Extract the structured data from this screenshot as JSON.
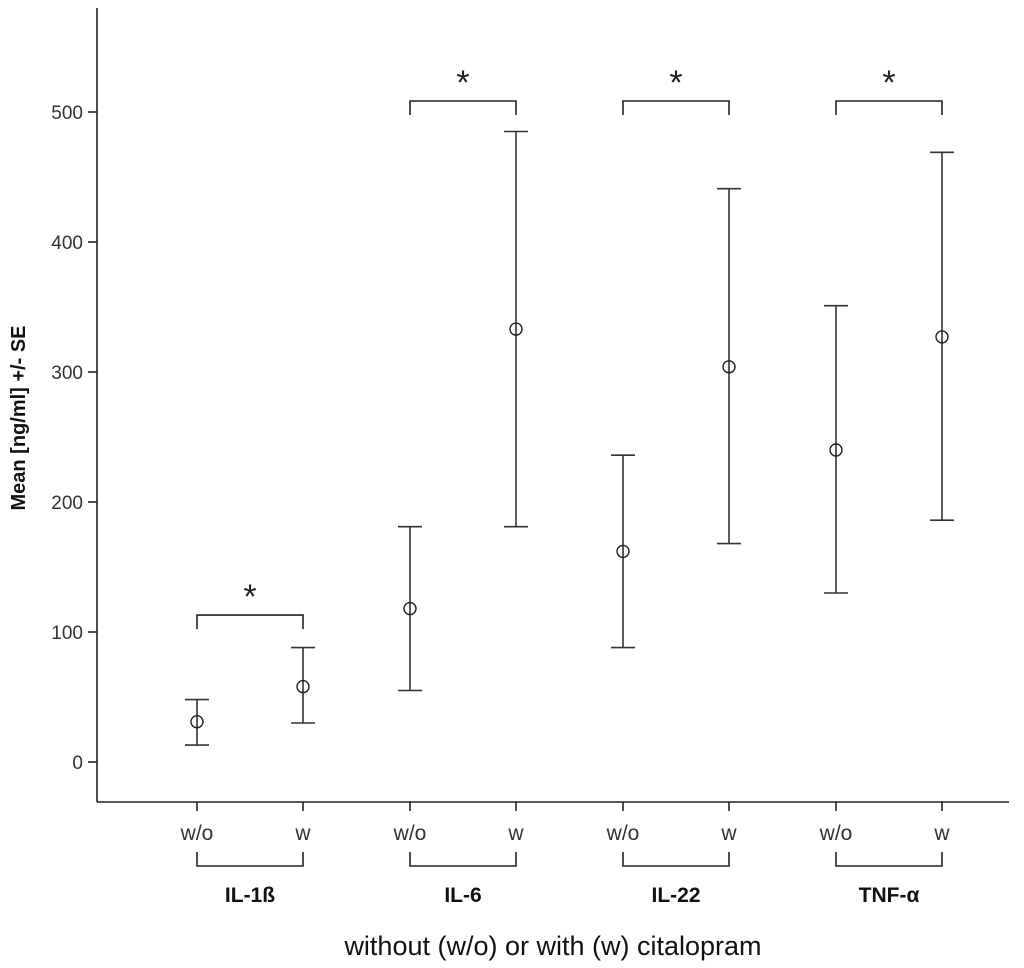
{
  "chart_data": {
    "type": "errorbar",
    "ylabel": "Mean [ng/ml] +/- SE",
    "xlabel": "without (w/o) or with (w) citalopram",
    "ylim": [
      -30,
      580
    ],
    "yticks": [
      0,
      100,
      200,
      300,
      400,
      500
    ],
    "grid": false,
    "groups": [
      {
        "label": "IL-1ß",
        "conditions": [
          {
            "label": "w/o",
            "mean": 31,
            "lower": 13,
            "upper": 48
          },
          {
            "label": "w",
            "mean": 58,
            "lower": 30,
            "upper": 88
          }
        ],
        "significance": "*"
      },
      {
        "label": "IL-6",
        "conditions": [
          {
            "label": "w/o",
            "mean": 118,
            "lower": 55,
            "upper": 181
          },
          {
            "label": "w",
            "mean": 333,
            "lower": 181,
            "upper": 485
          }
        ],
        "significance": "*"
      },
      {
        "label": "IL-22",
        "conditions": [
          {
            "label": "w/o",
            "mean": 162,
            "lower": 88,
            "upper": 236
          },
          {
            "label": "w",
            "mean": 304,
            "lower": 168,
            "upper": 441
          }
        ],
        "significance": "*"
      },
      {
        "label": "TNF-α",
        "conditions": [
          {
            "label": "w/o",
            "mean": 240,
            "lower": 130,
            "upper": 351
          },
          {
            "label": "w",
            "mean": 327,
            "lower": 186,
            "upper": 469
          }
        ],
        "significance": "*"
      }
    ]
  }
}
